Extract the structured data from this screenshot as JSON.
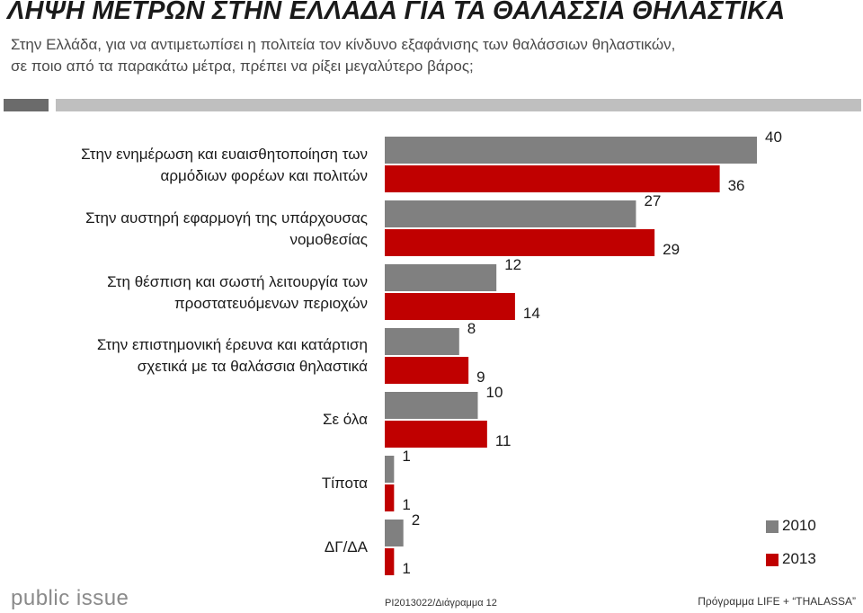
{
  "title": "ΛΗΨΗ ΜΕΤΡΩΝ ΣΤΗΝ ΕΛΛΑΔΑ ΓΙΑ ΤΑ ΘΑΛΑΣΣΙΑ ΘΗΛΑΣΤΙΚΑ",
  "subtitle": [
    "Στην Ελλάδα, για να αντιμετωπίσει η πολιτεία τον κίνδυνο εξαφάνισης των θαλάσσιων θηλαστικών,",
    "σε ποιο από τα παρακάτω μέτρα, πρέπει να ρίξει μεγαλύτερο βάρος;"
  ],
  "categories": [
    [
      "Στην ενημέρωση και ευαισθητοποίηση των",
      "αρμόδιων φορέων και πολιτών"
    ],
    [
      "Στην αυστηρή εφαρμογή της υπάρχουσας",
      "νομοθεσίας"
    ],
    [
      "Στη θέσπιση και σωστή λειτουργία των",
      "προστατευόμενων περιοχών"
    ],
    [
      "Στην επιστημονική έρευνα και κατάρτιση",
      "σχετικά με τα θαλάσσια θηλαστικά"
    ],
    [
      "Σε όλα"
    ],
    [
      "Τίποτα"
    ],
    [
      "ΔΓ/ΔΑ"
    ]
  ],
  "legend": [
    {
      "label": "2010",
      "color": "#808080"
    },
    {
      "label": "2013",
      "color": "#c00000"
    }
  ],
  "footer": {
    "logo": "public issue",
    "code": "PI2013022/Διάγραμμα 12",
    "program": "Πρόγραμμα LIFE + “THALASSA”"
  },
  "chart_data": {
    "type": "bar",
    "orientation": "horizontal",
    "categories": [
      "Στην ενημέρωση και ευαισθητοποίηση των αρμόδιων φορέων και πολιτών",
      "Στην αυστηρή εφαρμογή της υπάρχουσας νομοθεσίας",
      "Στη θέσπιση και σωστή λειτουργία των προστατευόμενων περιοχών",
      "Στην επιστημονική έρευνα και κατάρτιση σχετικά με τα θαλάσσια θηλαστικά",
      "Σε όλα",
      "Τίποτα",
      "ΔΓ/ΔΑ"
    ],
    "series": [
      {
        "name": "2010",
        "color": "#808080",
        "values": [
          40,
          27,
          12,
          8,
          10,
          1,
          2
        ]
      },
      {
        "name": "2013",
        "color": "#c00000",
        "values": [
          36,
          29,
          14,
          9,
          11,
          1,
          1
        ]
      }
    ],
    "legend_position": "bottom-right",
    "grid": false
  }
}
